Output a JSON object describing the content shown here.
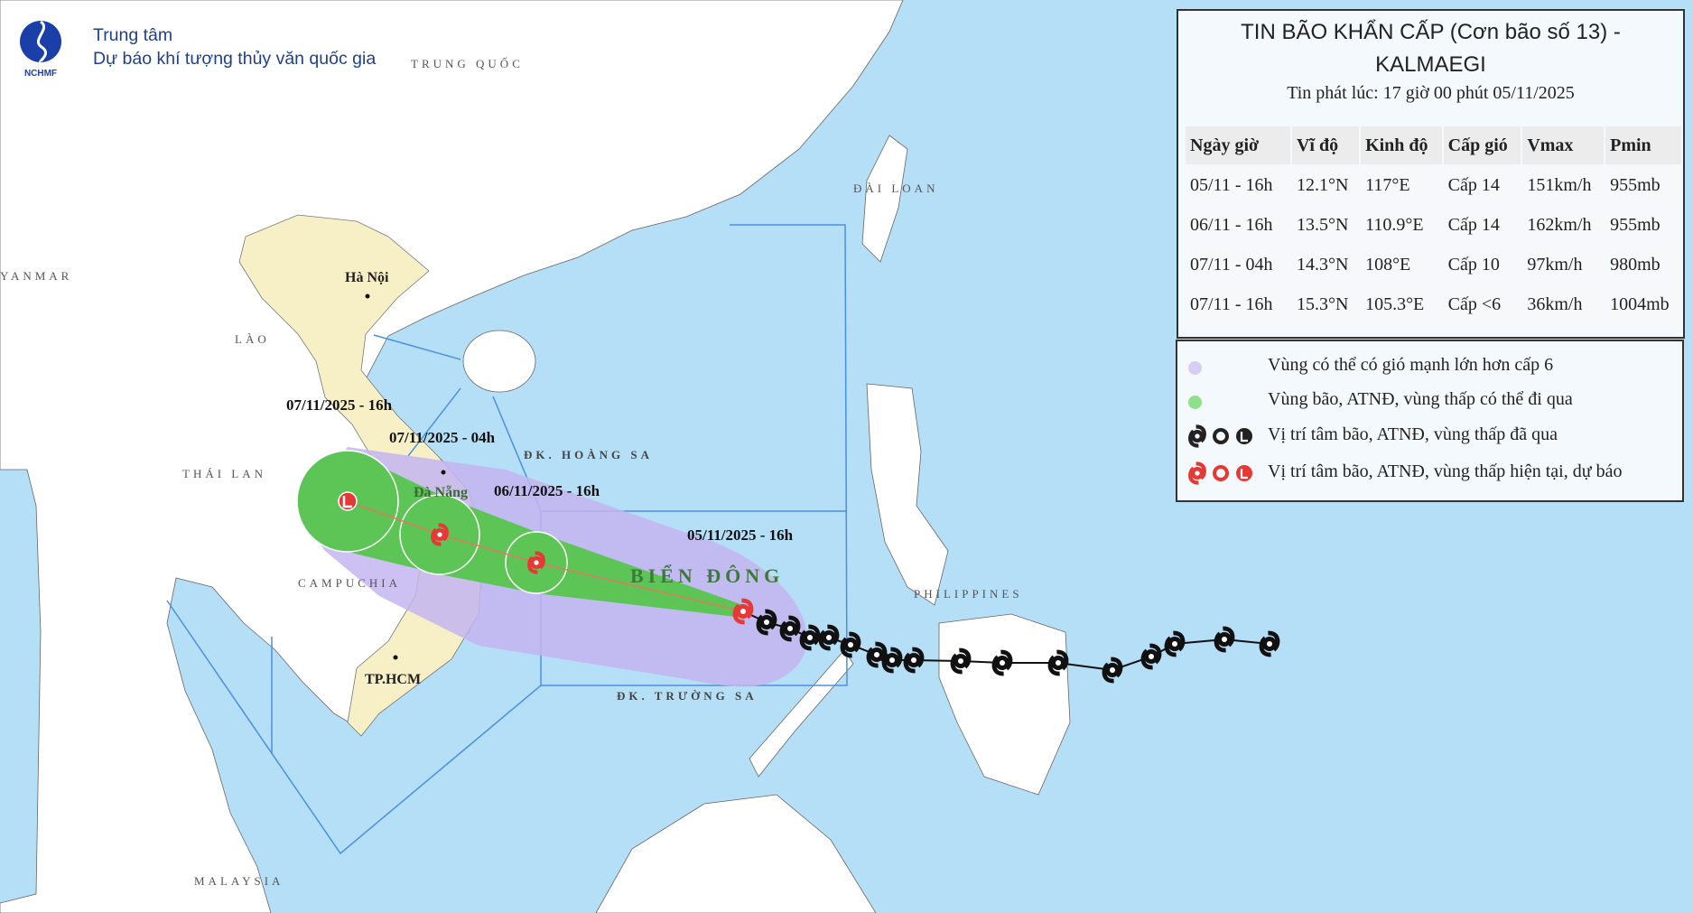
{
  "header": {
    "logo_text": "NCHMF",
    "org_line1": "Trung tâm",
    "org_line2": "Dự báo khí tượng thủy văn quốc gia"
  },
  "bulletin": {
    "title_line1": "TIN BÃO KHẨN CẤP (Cơn bão số 13) -",
    "title_line2": "KALMAEGI",
    "issued": "Tin phát lúc: 17 giờ 00 phút 05/11/2025",
    "columns": [
      "Ngày giờ",
      "Vĩ độ",
      "Kinh độ",
      "Cấp gió",
      "Vmax",
      "Pmin"
    ],
    "rows": [
      [
        "05/11 - 16h",
        "12.1°N",
        "117°E",
        "Cấp 14",
        "151km/h",
        "955mb"
      ],
      [
        "06/11 - 16h",
        "13.5°N",
        "110.9°E",
        "Cấp 14",
        "162km/h",
        "955mb"
      ],
      [
        "07/11 - 04h",
        "14.3°N",
        "108°E",
        "Cấp 10",
        "97km/h",
        "980mb"
      ],
      [
        "07/11 - 16h",
        "15.3°N",
        "105.3°E",
        "Cấp <6",
        "36km/h",
        "1004mb"
      ]
    ]
  },
  "legend": [
    {
      "text": "Vùng có thể có gió mạnh lớn hơn cấp 6",
      "color": "#d8cdf3"
    },
    {
      "text": "Vùng bão, ATNĐ, vùng thấp có thể đi qua",
      "color": "#8fe08a"
    },
    {
      "text": "Vị trí tâm bão, ATNĐ, vùng thấp đã qua",
      "color": "#222222"
    },
    {
      "text": "Vị trí tâm bão, ATNĐ, vùng thấp hiện tại, dự báo",
      "color": "#e53935"
    }
  ],
  "map": {
    "places": {
      "trung_quoc": "TRUNG QUỐC",
      "dai_loan": "ĐÀI LOAN",
      "myanmar": "YANMAR",
      "lao": "LÀO",
      "thai_lan": "THÁI LAN",
      "campuchia": "CAMPUCHIA",
      "hoang_sa": "ĐK. HOÀNG SA",
      "truong_sa": "ĐK. TRƯỜNG SA",
      "bien_dong": "BIỂN ĐÔNG",
      "ha_noi": "Hà Nội",
      "da_nang": "Đà Nẵng",
      "tphcm": "TP.HCM",
      "philippines": "PHILIPPINES",
      "malaysia": "MALAYSIA"
    },
    "time_labels": [
      "05/11/2025 - 16h",
      "06/11/2025 - 16h",
      "07/11/2025 - 04h",
      "07/11/2025 - 16h"
    ],
    "colors": {
      "sea": "#b5dff6",
      "land": "#ffffff",
      "vietnam": "#f7f0c6",
      "wind_zone": "#c4b5f0",
      "storm_zone": "#5cc556",
      "past": "#111111",
      "forecast": "#e53935"
    }
  }
}
